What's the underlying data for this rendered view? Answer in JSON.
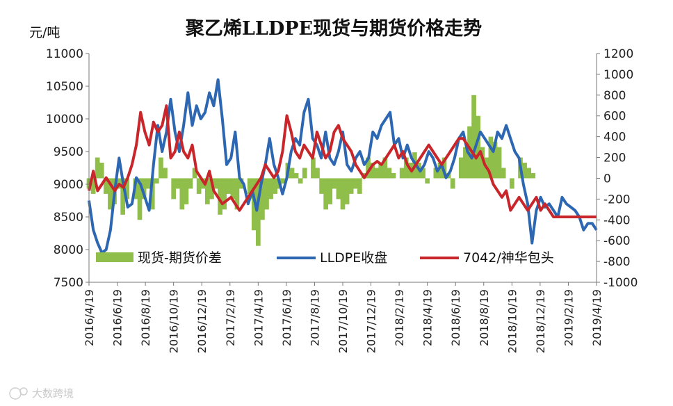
{
  "chart_data": {
    "type": "line",
    "title": "聚乙烯LLDPE现货与期货价格走势",
    "ylabel": "元/吨",
    "ylim": [
      7500,
      11000
    ],
    "y2lim": [
      -1000,
      1200
    ],
    "yticks": [
      7500,
      8000,
      8500,
      9000,
      9500,
      10000,
      10500,
      11000
    ],
    "y2ticks": [
      -1000,
      -800,
      -600,
      -400,
      -200,
      0,
      200,
      400,
      600,
      800,
      1000,
      1200
    ],
    "x_tick_labels": [
      "2016/4/19",
      "2016/6/19",
      "2016/8/19",
      "2016/10/19",
      "2016/12/19",
      "2017/2/19",
      "2017/4/19",
      "2017/6/19",
      "2017/8/19",
      "2017/10/19",
      "2017/12/19",
      "2018/2/19",
      "2018/4/19",
      "2018/6/19",
      "2018/8/19",
      "2018/10/19",
      "2018/12/19",
      "2019/2/19",
      "2019/4/19"
    ],
    "series": [
      {
        "name": "现货-期货价差",
        "type": "area",
        "axis": "right",
        "color": "#8fbe4a",
        "values": [
          -100,
          -150,
          200,
          150,
          -150,
          -300,
          -250,
          -100,
          -350,
          -200,
          0,
          -200,
          -400,
          -200,
          -100,
          -300,
          -50,
          200,
          100,
          0,
          -200,
          -100,
          -300,
          -250,
          -100,
          100,
          -150,
          -100,
          -250,
          -200,
          -100,
          -350,
          -300,
          -150,
          -200,
          -300,
          -100,
          0,
          -150,
          -500,
          -650,
          -400,
          -300,
          -200,
          -150,
          -100,
          -50,
          150,
          100,
          50,
          -50,
          100,
          0,
          200,
          100,
          -150,
          -300,
          -250,
          -100,
          -200,
          -300,
          -250,
          -150,
          -100,
          -150,
          50,
          200,
          150,
          100,
          150,
          200,
          100,
          50,
          0,
          100,
          200,
          150,
          250,
          150,
          100,
          -50,
          0,
          100,
          150,
          200,
          50,
          -100,
          0,
          200,
          300,
          500,
          800,
          600,
          300,
          200,
          400,
          350,
          300,
          100,
          0,
          -100,
          0,
          200,
          150,
          100,
          50,
          0,
          0,
          0,
          0,
          0,
          0,
          0,
          0,
          0,
          0,
          0,
          0,
          0,
          0,
          0
        ]
      },
      {
        "name": "LLDPE收盘",
        "type": "line",
        "axis": "left",
        "color": "#2e67b1",
        "values": [
          8750,
          8300,
          8100,
          7950,
          8000,
          8300,
          8900,
          9400,
          9000,
          8650,
          8700,
          9100,
          9000,
          8800,
          8600,
          9300,
          9900,
          9500,
          9800,
          10300,
          9800,
          9500,
          9900,
          10400,
          9900,
          10200,
          10000,
          10100,
          10400,
          10200,
          10600,
          10000,
          9300,
          9400,
          9800,
          9100,
          9000,
          8700,
          8900,
          8600,
          9000,
          9300,
          9700,
          9300,
          9100,
          8850,
          9100,
          9500,
          9700,
          9600,
          10100,
          10300,
          9700,
          9600,
          9400,
          9800,
          9400,
          9300,
          9500,
          9800,
          9300,
          9200,
          9400,
          9500,
          9300,
          9400,
          9800,
          9700,
          9900,
          10000,
          10100,
          9600,
          9700,
          9400,
          9600,
          9400,
          9300,
          9200,
          9300,
          9500,
          9400,
          9200,
          9300,
          9100,
          9200,
          9400,
          9700,
          9800,
          9500,
          9400,
          9600,
          9800,
          9700,
          9600,
          9500,
          9800,
          9700,
          9900,
          9700,
          9500,
          9400,
          9000,
          8700,
          8100,
          8600,
          8800,
          8650,
          8700,
          8600,
          8500,
          8800,
          8700,
          8650,
          8600,
          8500,
          8300,
          8400,
          8400,
          8300
        ]
      },
      {
        "name": "7042/神华包头",
        "type": "line",
        "axis": "left",
        "color": "#c8262b",
        "values": [
          8900,
          9200,
          8900,
          9000,
          9100,
          9000,
          8900,
          9000,
          8950,
          9100,
          9300,
          9600,
          10100,
          9800,
          9600,
          9950,
          9800,
          9900,
          10200,
          9400,
          9500,
          9800,
          9500,
          9400,
          9600,
          9200,
          9100,
          9000,
          9200,
          8900,
          8800,
          8700,
          8750,
          8800,
          8700,
          8600,
          8700,
          8800,
          8900,
          9000,
          9100,
          9300,
          9200,
          9100,
          9200,
          9500,
          10050,
          9800,
          9500,
          9400,
          9600,
          9500,
          9400,
          9800,
          9600,
          9400,
          9500,
          9800,
          9900,
          9700,
          9600,
          9500,
          9300,
          9200,
          9100,
          9200,
          9300,
          9350,
          9300,
          9400,
          9500,
          9600,
          9400,
          9500,
          9300,
          9200,
          9300,
          9400,
          9500,
          9600,
          9500,
          9400,
          9300,
          9400,
          9500,
          9600,
          9700,
          9700,
          9600,
          9500,
          9400,
          9500,
          9300,
          9200,
          9000,
          8900,
          8800,
          8900,
          8600,
          8700,
          8800,
          8700,
          8600,
          8700,
          8800,
          8600,
          8700,
          8600,
          8500,
          8500,
          8500,
          8500,
          8500,
          8500,
          8500,
          8500,
          8500,
          8500,
          8500
        ]
      }
    ],
    "legend": [
      "现货-期货价差",
      "LLDPE收盘",
      "7042/神华包头"
    ],
    "legend_position": "bottom-inside"
  },
  "watermark": {
    "text": "大数跨境"
  }
}
